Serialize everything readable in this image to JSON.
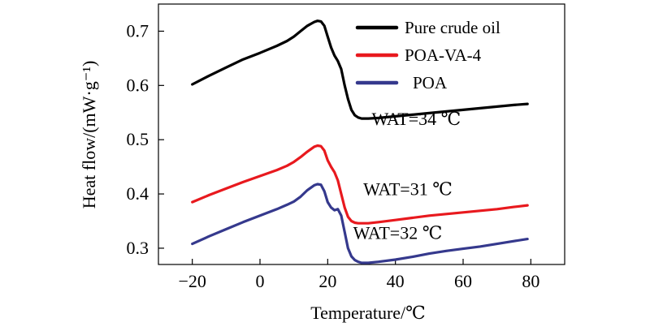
{
  "chart_data": {
    "type": "line",
    "title": "",
    "xlabel": "Temperature/℃",
    "ylabel": "Heat flow/(mW·g⁻¹)",
    "xlim": [
      -30,
      90
    ],
    "ylim": [
      0.27,
      0.75
    ],
    "xticks": [
      -20,
      0,
      20,
      40,
      60,
      80
    ],
    "xtick_labels": [
      "−20",
      "0",
      "20",
      "40",
      "60",
      "80"
    ],
    "yticks": [
      0.3,
      0.4,
      0.5,
      0.6,
      0.7
    ],
    "ytick_labels": [
      "0.3",
      "0.4",
      "0.5",
      "0.6",
      "0.7"
    ],
    "grid": false,
    "legend_position": "top-right",
    "series": [
      {
        "name": "Pure crude oil",
        "color": "#000000",
        "x": [
          -20,
          -15,
          -10,
          -5,
          0,
          5,
          8,
          10,
          12,
          14,
          16,
          17,
          18,
          19,
          20,
          21,
          22,
          23,
          24,
          25,
          26,
          27,
          28,
          29,
          30,
          32,
          35,
          40,
          45,
          50,
          55,
          60,
          65,
          70,
          75,
          79
        ],
        "y": [
          0.602,
          0.618,
          0.633,
          0.648,
          0.66,
          0.673,
          0.682,
          0.69,
          0.7,
          0.71,
          0.717,
          0.719,
          0.718,
          0.71,
          0.69,
          0.67,
          0.655,
          0.645,
          0.63,
          0.6,
          0.575,
          0.555,
          0.545,
          0.541,
          0.539,
          0.539,
          0.54,
          0.543,
          0.546,
          0.549,
          0.552,
          0.555,
          0.558,
          0.561,
          0.564,
          0.566
        ]
      },
      {
        "name": "POA-VA-4",
        "color": "#e8191e",
        "x": [
          -20,
          -15,
          -10,
          -5,
          0,
          5,
          8,
          10,
          12,
          14,
          16,
          17,
          18,
          19,
          20,
          21,
          22,
          23,
          24,
          25,
          26,
          27,
          28,
          29,
          30,
          32,
          35,
          40,
          45,
          50,
          55,
          60,
          65,
          70,
          75,
          79
        ],
        "y": [
          0.385,
          0.398,
          0.41,
          0.422,
          0.433,
          0.444,
          0.452,
          0.459,
          0.468,
          0.478,
          0.487,
          0.489,
          0.488,
          0.48,
          0.462,
          0.45,
          0.44,
          0.425,
          0.4,
          0.375,
          0.358,
          0.35,
          0.347,
          0.346,
          0.346,
          0.346,
          0.348,
          0.352,
          0.356,
          0.36,
          0.363,
          0.366,
          0.369,
          0.372,
          0.376,
          0.379
        ]
      },
      {
        "name": "POA",
        "color": "#35398d",
        "x": [
          -20,
          -15,
          -10,
          -5,
          0,
          5,
          8,
          10,
          12,
          14,
          16,
          17,
          18,
          19,
          20,
          21,
          22,
          23,
          24,
          25,
          26,
          27,
          28,
          29,
          30,
          32,
          35,
          40,
          45,
          50,
          55,
          60,
          65,
          70,
          75,
          79
        ],
        "y": [
          0.308,
          0.322,
          0.335,
          0.348,
          0.36,
          0.372,
          0.38,
          0.386,
          0.395,
          0.407,
          0.416,
          0.418,
          0.417,
          0.405,
          0.385,
          0.375,
          0.37,
          0.372,
          0.36,
          0.33,
          0.3,
          0.285,
          0.278,
          0.275,
          0.273,
          0.273,
          0.275,
          0.279,
          0.284,
          0.29,
          0.295,
          0.299,
          0.303,
          0.308,
          0.313,
          0.317
        ]
      }
    ],
    "annotations": [
      {
        "text": "WAT=34 ℃",
        "x": 33,
        "y": 0.527
      },
      {
        "text": "WAT=31 ℃",
        "x": 30.5,
        "y": 0.398
      },
      {
        "text": "WAT=32 ℃",
        "x": 27.5,
        "y": 0.317
      }
    ]
  }
}
